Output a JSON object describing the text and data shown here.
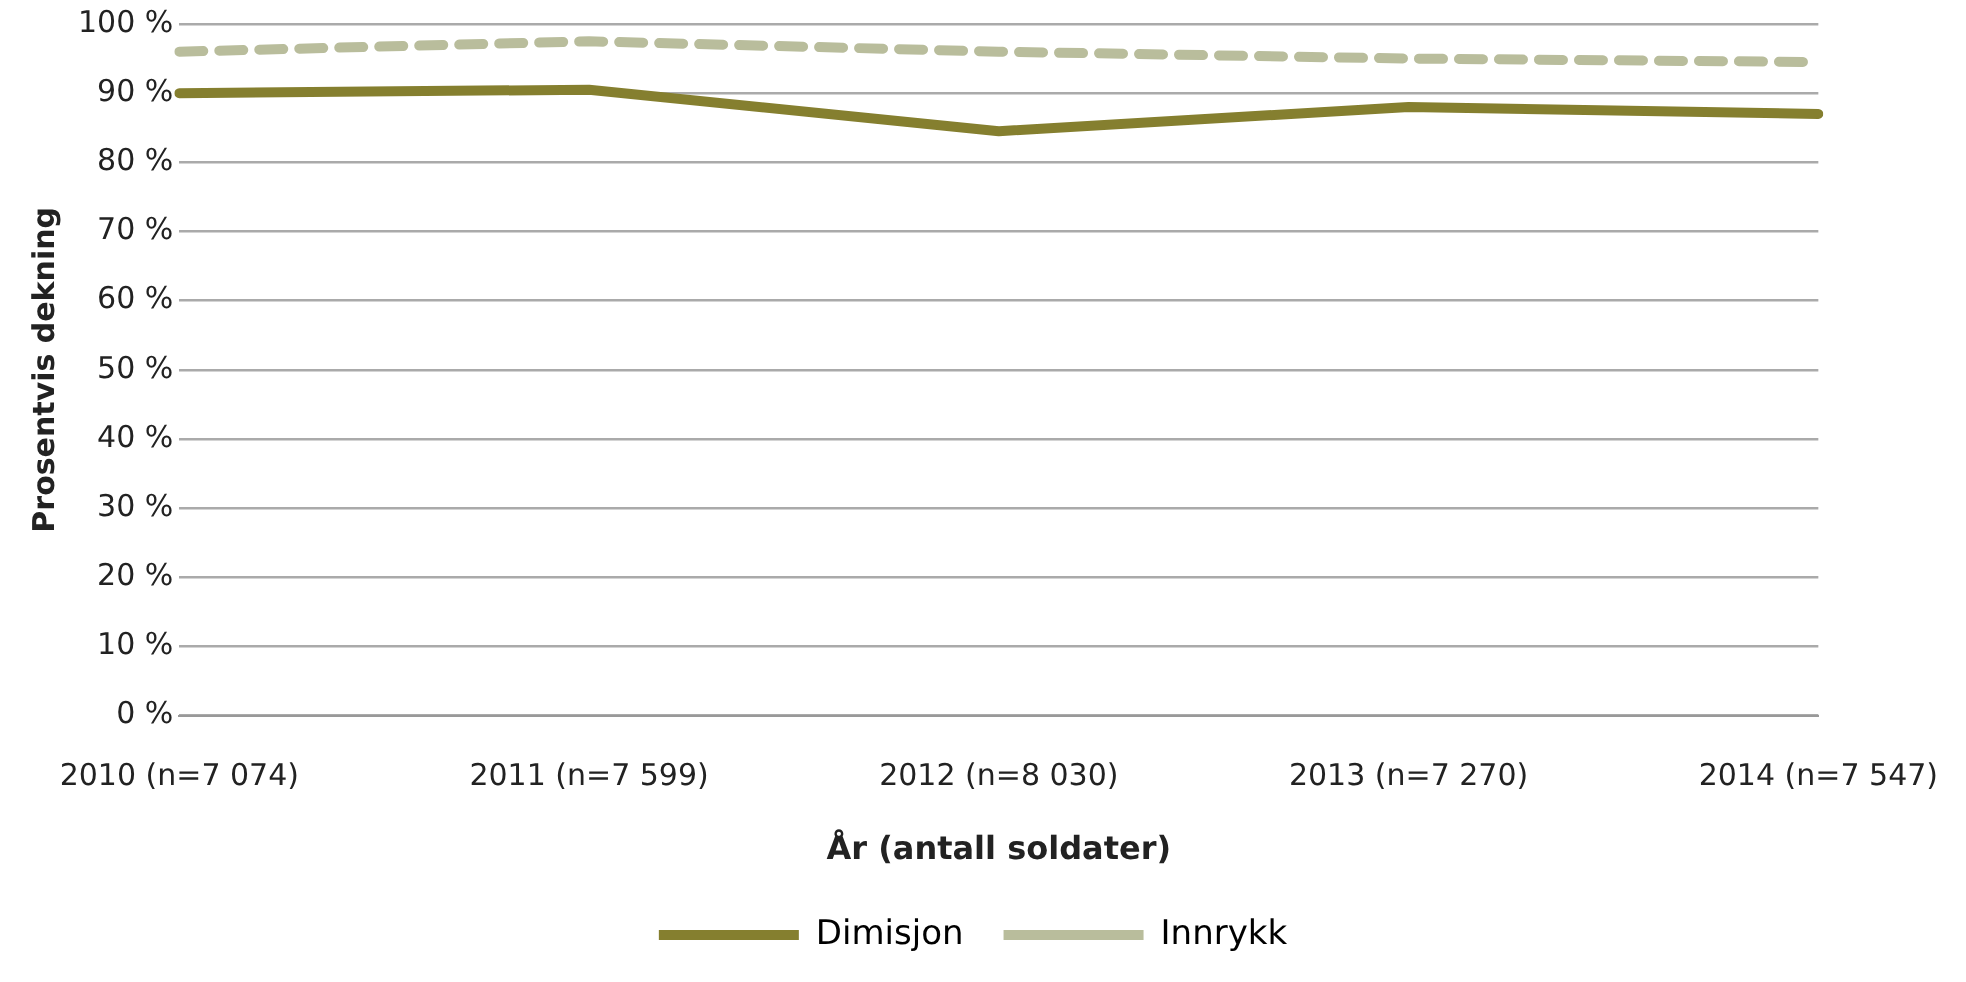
{
  "chart_data": {
    "type": "line",
    "xlabel": "År (antall soldater)",
    "ylabel": "Prosentvis dekning",
    "categories": [
      "2010 (n=7 074)",
      "2011 (n=7 599)",
      "2012 (n=8 030)",
      "2013 (n=7 270)",
      "2014 (n=7 547)"
    ],
    "series": [
      {
        "name": "Dimisjon",
        "color": "#857f2f",
        "values": [
          90,
          90.5,
          84.5,
          88,
          87
        ],
        "line_style": "solid"
      },
      {
        "name": "Innrykk",
        "color": "#b9bd9c",
        "values": [
          96,
          97.5,
          96,
          95,
          94.5
        ],
        "line_style": "dashed"
      }
    ],
    "ylim": [
      0,
      100
    ],
    "yticks": [
      {
        "value": 0,
        "label": "0 %"
      },
      {
        "value": 10,
        "label": "10 %"
      },
      {
        "value": 20,
        "label": "20 %"
      },
      {
        "value": 30,
        "label": "30 %"
      },
      {
        "value": 40,
        "label": "40 %"
      },
      {
        "value": 50,
        "label": "50 %"
      },
      {
        "value": 60,
        "label": "60 %"
      },
      {
        "value": 70,
        "label": "70 %"
      },
      {
        "value": 80,
        "label": "80 %"
      },
      {
        "value": 90,
        "label": "90 %"
      },
      {
        "value": 100,
        "label": "100 %"
      }
    ],
    "grid": "y",
    "legend": "bottom",
    "marker": "none"
  }
}
